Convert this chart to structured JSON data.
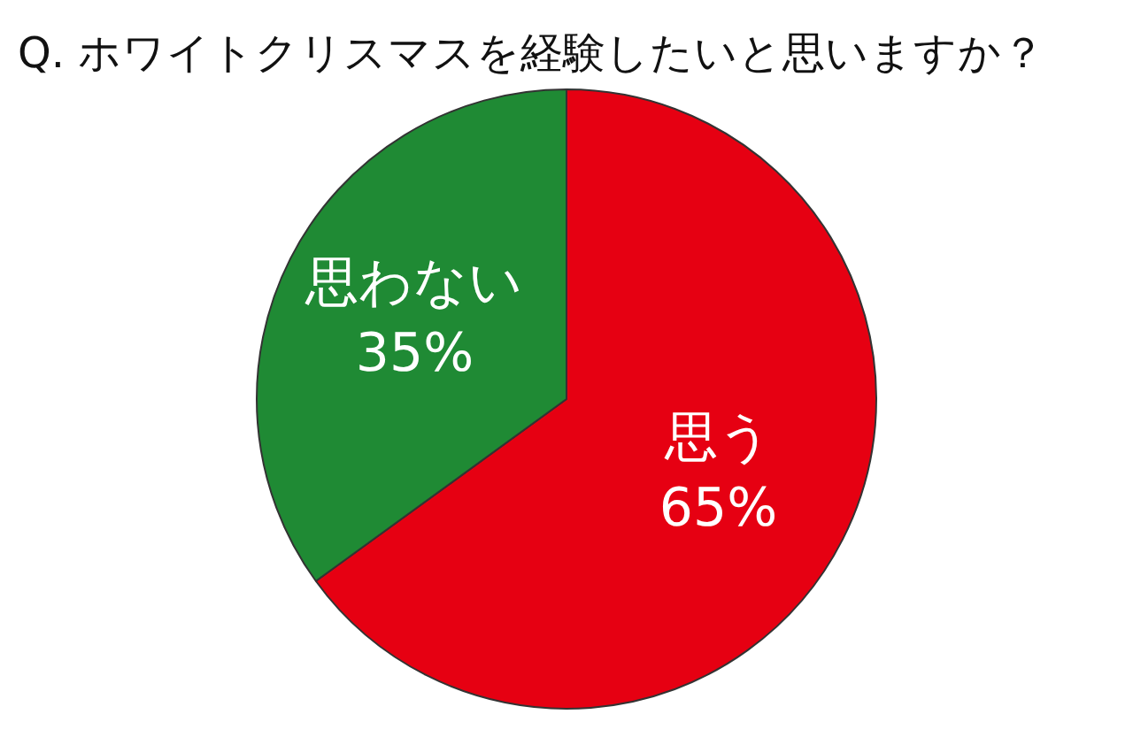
{
  "chart_data": {
    "type": "pie",
    "title": "Q. ホワイトクリスマスを経験したいと思いますか？",
    "categories": [
      "思う",
      "思わない"
    ],
    "values": [
      65,
      35
    ],
    "colors": [
      "#e60012",
      "#1f8a34"
    ],
    "value_labels": [
      "65%",
      "35%"
    ],
    "legend": false
  }
}
